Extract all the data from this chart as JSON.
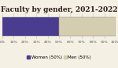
{
  "title": "Faculty by gender, 2021-2022",
  "bar_value": 0.5,
  "women_color": "#4a3d8f",
  "men_color": "#d4cdb0",
  "background_color": "#f5f0e4",
  "women_label": "Women (50%)",
  "men_label": "Men (50%)",
  "xlim": [
    0,
    1
  ],
  "title_fontsize": 6.5,
  "legend_fontsize": 4.0,
  "tick_fontsize": 3.2,
  "xticks": [
    0.0,
    0.1,
    0.2,
    0.3,
    0.4,
    0.5,
    0.6,
    0.7,
    0.8,
    0.9,
    1.0
  ],
  "grid_color": "#c8bfa8",
  "bar_height": 0.7,
  "bar_edge_color": "#888888"
}
